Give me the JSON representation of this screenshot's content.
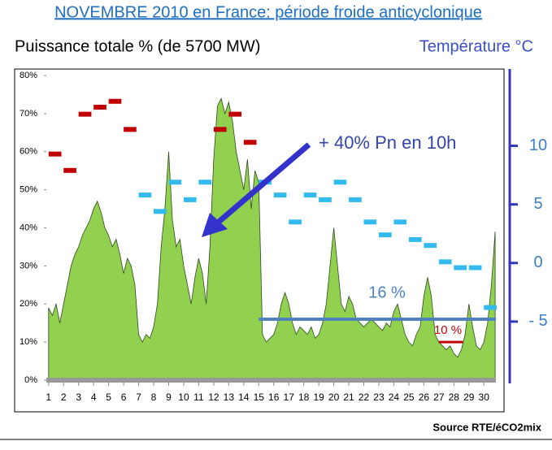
{
  "chart_data": {
    "type": "area",
    "title": "NOVEMBRE 2010 en France: période froide anticyclonique",
    "ylabel": "Puissance totale % (de 5700 MW)",
    "y2label": "Température °C",
    "source": "Source RTE/éCO2mix",
    "xlim": [
      0.85,
      30.8
    ],
    "xticks": [
      1,
      2,
      3,
      4,
      5,
      6,
      7,
      8,
      9,
      10,
      11,
      12,
      13,
      14,
      15,
      16,
      17,
      18,
      19,
      20,
      21,
      22,
      23,
      24,
      25,
      26,
      27,
      28,
      29,
      30
    ],
    "ylim": [
      0,
      80
    ],
    "yticks": [
      {
        "value": 0,
        "label": "0%"
      },
      {
        "value": 10,
        "label": "10%"
      },
      {
        "value": 20,
        "label": "20%"
      },
      {
        "value": 30,
        "label": "30%"
      },
      {
        "value": 40,
        "label": "40%"
      },
      {
        "value": 50,
        "label": "50%"
      },
      {
        "value": 60,
        "label": "60%"
      },
      {
        "value": 70,
        "label": "70%"
      },
      {
        "value": 80,
        "label": "80%"
      }
    ],
    "y2lim": [
      -10,
      16
    ],
    "y2ticks": [
      10,
      5,
      0,
      {
        "value": -5,
        "label": "- 5"
      }
    ],
    "series": [
      {
        "color": "#92d050",
        "x": [
          1,
          1.25,
          1.5,
          1.75,
          2,
          2.25,
          2.5,
          2.75,
          3,
          3.25,
          3.5,
          3.75,
          4,
          4.25,
          4.5,
          4.75,
          5,
          5.25,
          5.5,
          5.75,
          6,
          6.25,
          6.5,
          6.75,
          7,
          7.25,
          7.5,
          7.75,
          8,
          8.25,
          8.5,
          8.75,
          9,
          9.25,
          9.5,
          9.75,
          10,
          10.25,
          10.5,
          10.75,
          11,
          11.25,
          11.5,
          11.75,
          12,
          12.25,
          12.5,
          12.75,
          13,
          13.25,
          13.5,
          13.75,
          14,
          14.25,
          14.5,
          14.75,
          15,
          15.25,
          15.5,
          15.75,
          16,
          16.25,
          16.5,
          16.75,
          17,
          17.25,
          17.5,
          17.75,
          18,
          18.25,
          18.5,
          18.75,
          19,
          19.25,
          19.5,
          19.75,
          20,
          20.25,
          20.5,
          20.75,
          21,
          21.25,
          21.5,
          21.75,
          22,
          22.25,
          22.5,
          22.75,
          23,
          23.25,
          23.5,
          23.75,
          24,
          24.25,
          24.5,
          24.75,
          25,
          25.25,
          25.5,
          25.75,
          26,
          26.25,
          26.5,
          26.75,
          27,
          27.25,
          27.5,
          27.75,
          28,
          28.25,
          28.5,
          28.75,
          29,
          29.25,
          29.5,
          29.75,
          30,
          30.25,
          30.5,
          30.75
        ],
        "values": [
          19,
          17,
          20,
          15,
          20,
          25,
          30,
          33,
          35,
          38,
          40,
          42,
          45,
          47,
          44,
          40,
          38,
          35,
          37,
          33,
          28,
          32,
          30,
          25,
          12,
          10,
          12,
          11,
          14,
          20,
          35,
          45,
          60,
          42,
          35,
          37,
          30,
          25,
          20,
          27,
          32,
          28,
          20,
          35,
          58,
          72,
          74,
          70,
          73,
          68,
          60,
          55,
          50,
          58,
          45,
          55,
          52,
          12,
          10,
          11,
          12,
          15,
          20,
          23,
          20,
          15,
          12,
          14,
          13,
          12,
          14,
          11,
          12,
          15,
          20,
          30,
          40,
          30,
          20,
          18,
          22,
          20,
          16,
          15,
          14,
          15,
          16,
          15,
          14,
          13,
          15,
          14,
          18,
          20,
          16,
          12,
          10,
          9,
          12,
          14,
          22,
          27,
          22,
          12,
          10,
          9,
          8,
          9,
          7,
          6,
          8,
          12,
          20,
          14,
          9,
          8,
          10,
          15,
          25,
          39
        ]
      },
      {
        "axis": "y2",
        "x": [
          1,
          2,
          3,
          4,
          5,
          6,
          7,
          8,
          9,
          10,
          11,
          12,
          13,
          14,
          15,
          16,
          17,
          18,
          19,
          20,
          21,
          22,
          23,
          24,
          25,
          26,
          27,
          28,
          29,
          30
        ],
        "values": [
          9.3,
          7.9,
          12.7,
          13.3,
          13.8,
          11.4,
          5.8,
          4.4,
          6.9,
          5.4,
          6.9,
          11.4,
          12.7,
          10.3,
          6.9,
          5.8,
          3.5,
          5.8,
          5.4,
          6.9,
          5.4,
          3.5,
          2.4,
          3.5,
          2.0,
          1.5,
          0.1,
          -0.4,
          -0.4,
          -3.8
        ],
        "colors": [
          "#c00000",
          "#c00000",
          "#c00000",
          "#c00000",
          "#c00000",
          "#c00000",
          "#33bbee",
          "#33bbee",
          "#33bbee",
          "#33bbee",
          "#33bbee",
          "#c00000",
          "#c00000",
          "#c00000",
          "#33bbee",
          "#33bbee",
          "#33bbee",
          "#33bbee",
          "#33bbee",
          "#33bbee",
          "#33bbee",
          "#33bbee",
          "#33bbee",
          "#33bbee",
          "#33bbee",
          "#33bbee",
          "#33bbee",
          "#33bbee",
          "#33bbee",
          "#33bbee"
        ]
      }
    ],
    "reference_lines": [
      {
        "label": "16 %",
        "value": 16,
        "from": 15,
        "to": 30.8,
        "color": "#4f81bd"
      },
      {
        "label": "10 %",
        "value": 10,
        "from": 27,
        "to": 28.6,
        "color": "#c00000"
      }
    ],
    "annotation": "+ 40% Pn en 10h"
  }
}
